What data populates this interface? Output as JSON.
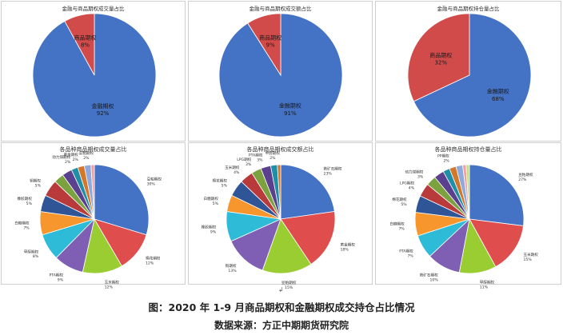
{
  "caption": {
    "title": "图：2020 年 1-9 月商品期权和金融期权成交持仓占比情况",
    "source": "数据来源：方正中期期货研究院",
    "return_mark": "↲"
  },
  "colors": {
    "financial": "#4472c4",
    "commodity": "#d14b4b",
    "slices": [
      "#4472c4",
      "#e04d4d",
      "#9acd32",
      "#7f5fb4",
      "#2ebbd8",
      "#f7962d",
      "#2f5597",
      "#b83a3a",
      "#7ca240",
      "#5c4090",
      "#1f8fa8",
      "#d4772a",
      "#8fa9dd",
      "#f0a0a0",
      "#c4e087",
      "#b0a0d4",
      "#8adbe9",
      "#fbc18d"
    ]
  },
  "chart_data": [
    {
      "type": "pie",
      "title": "金融与商品期权成交量占比",
      "slices": [
        {
          "label": "金融期权",
          "value": 92,
          "pct": "92%"
        },
        {
          "label": "商品期权",
          "value": 8,
          "pct": "8%"
        }
      ]
    },
    {
      "type": "pie",
      "title": "金融与商品期权成交额占比",
      "slices": [
        {
          "label": "金融期权",
          "value": 91,
          "pct": "91%"
        },
        {
          "label": "商品期权",
          "value": 9,
          "pct": "9%"
        }
      ]
    },
    {
      "type": "pie",
      "title": "金融与商品期权持仓量占比",
      "slices": [
        {
          "label": "金融期权",
          "value": 68,
          "pct": "68%"
        },
        {
          "label": "商品期权",
          "value": 32,
          "pct": "32%"
        }
      ]
    },
    {
      "type": "pie",
      "title": "各品种商品期权成交量占比",
      "slices": [
        {
          "label": "豆粕期权",
          "value": 30,
          "pct": "30%"
        },
        {
          "label": "棉花期权",
          "value": 12,
          "pct": "12%"
        },
        {
          "label": "玉米期权",
          "value": 12,
          "pct": "12%"
        },
        {
          "label": "PTA期权",
          "value": 9,
          "pct": "9%"
        },
        {
          "label": "甲醇期权",
          "value": 8,
          "pct": "8%"
        },
        {
          "label": "白糖期权",
          "value": 7,
          "pct": "7%"
        },
        {
          "label": "橡胶期权",
          "value": 5,
          "pct": "5%"
        },
        {
          "label": "铜期权",
          "value": 5,
          "pct": "5%"
        },
        {
          "label": "",
          "value": 3,
          "pct": ""
        },
        {
          "label": "",
          "value": 3,
          "pct": ""
        },
        {
          "label": "动力煤期权",
          "value": 2,
          "pct": "2%"
        },
        {
          "label": "黄金期权",
          "value": 2,
          "pct": "2%"
        },
        {
          "label": "菜粕期权",
          "value": 2,
          "pct": "2%"
        },
        {
          "label": "",
          "value": 1,
          "pct": ""
        }
      ]
    },
    {
      "type": "pie",
      "title": "各品种商品期权成交额占比",
      "slices": [
        {
          "label": "铁矿石期权",
          "value": 23,
          "pct": "23%"
        },
        {
          "label": "黄金期权",
          "value": 18,
          "pct": "18%"
        },
        {
          "label": "豆粕期权",
          "value": 15,
          "pct": "15%"
        },
        {
          "label": "铜期权",
          "value": 13,
          "pct": "13%"
        },
        {
          "label": "橡胶期权",
          "value": 9,
          "pct": "9%"
        },
        {
          "label": "白糖期权",
          "value": 5,
          "pct": "5%"
        },
        {
          "label": "棉花期权",
          "value": 5,
          "pct": "5%"
        },
        {
          "label": "玉米期权",
          "value": 4,
          "pct": "4%"
        },
        {
          "label": "LPG期权",
          "value": 3,
          "pct": "3%"
        },
        {
          "label": "PTA期权",
          "value": 3,
          "pct": "3%"
        },
        {
          "label": "甲醇期权",
          "value": 2,
          "pct": "2%"
        },
        {
          "label": "",
          "value": 1,
          "pct": ""
        }
      ]
    },
    {
      "type": "pie",
      "title": "各品种商品期权持仓量占比",
      "slices": [
        {
          "label": "豆粕期权",
          "value": 27,
          "pct": "27%"
        },
        {
          "label": "玉米期权",
          "value": 15,
          "pct": "15%"
        },
        {
          "label": "甲醇期权",
          "value": 11,
          "pct": "11%"
        },
        {
          "label": "铁矿石期权",
          "value": 10,
          "pct": "10%"
        },
        {
          "label": "PTA期权",
          "value": 7,
          "pct": "7%"
        },
        {
          "label": "白糖期权",
          "value": 7,
          "pct": "7%"
        },
        {
          "label": "棉花期权",
          "value": 5,
          "pct": "5%"
        },
        {
          "label": "LPG期权",
          "value": 4,
          "pct": "4%"
        },
        {
          "label": "动力煤期权",
          "value": 3,
          "pct": "3%"
        },
        {
          "label": "",
          "value": 3,
          "pct": ""
        },
        {
          "label": "",
          "value": 2,
          "pct": ""
        },
        {
          "label": "PP期权",
          "value": 2,
          "pct": "2%"
        },
        {
          "label": "",
          "value": 2,
          "pct": ""
        },
        {
          "label": "",
          "value": 1,
          "pct": ""
        },
        {
          "label": "",
          "value": 1,
          "pct": ""
        }
      ]
    }
  ]
}
